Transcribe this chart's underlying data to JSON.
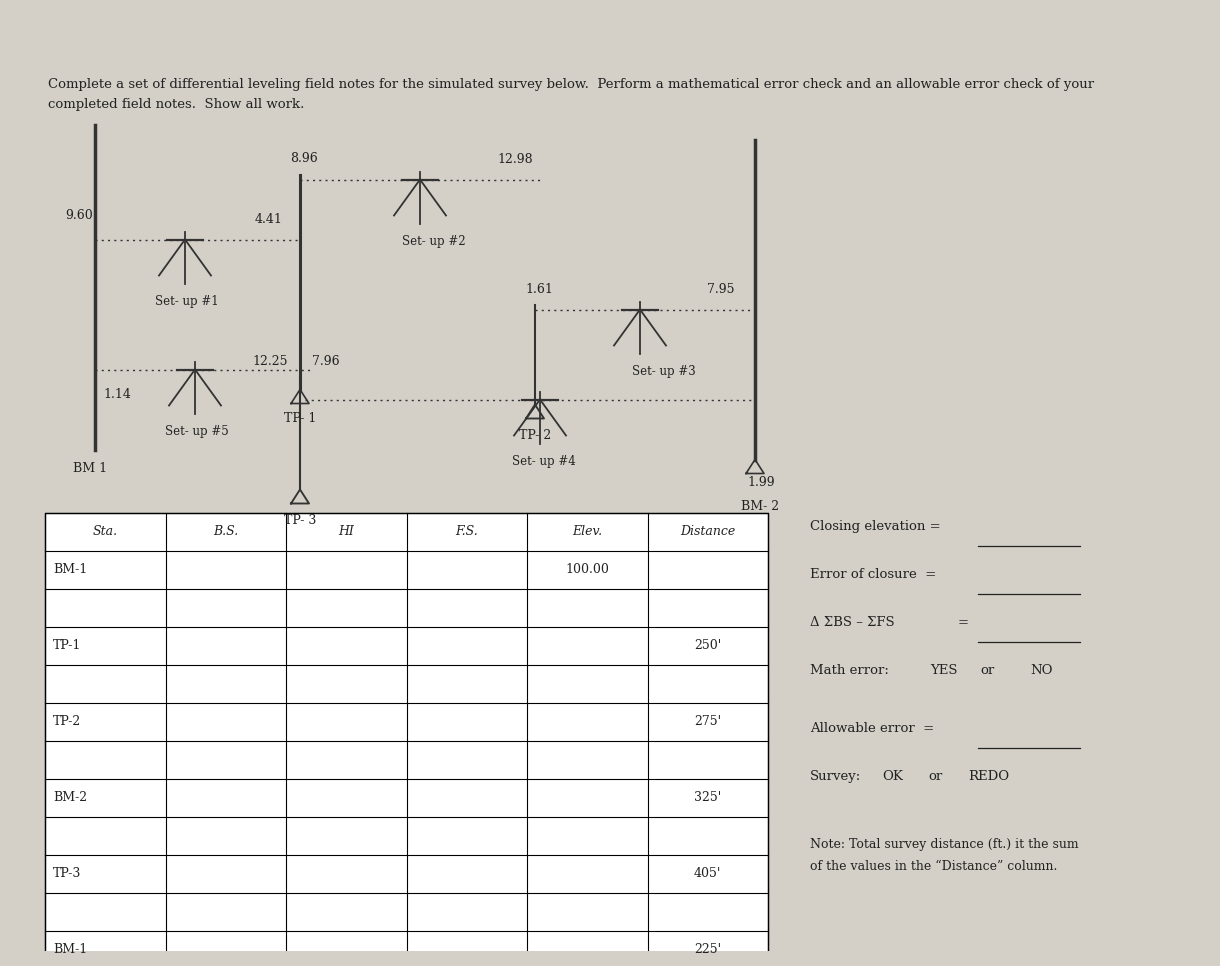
{
  "title_line1": "Complete a set of differential leveling field notes for the simulated survey below.  Perform a mathematical error check and an allowable error check of your",
  "title_line2": "completed field notes.  Show all work.",
  "bg_color": "#d4d0c8",
  "table": {
    "columns": [
      "Sta.",
      "B.S.",
      "HI",
      "F.S.",
      "Elev.",
      "Distance"
    ],
    "rows": [
      [
        "BM-1",
        "",
        "",
        "",
        "100.00",
        ""
      ],
      [
        "",
        "",
        "",
        "",
        "",
        ""
      ],
      [
        "TP-1",
        "",
        "",
        "",
        "",
        "250'"
      ],
      [
        "",
        "",
        "",
        "",
        "",
        ""
      ],
      [
        "TP-2",
        "",
        "",
        "",
        "",
        "275'"
      ],
      [
        "",
        "",
        "",
        "",
        "",
        ""
      ],
      [
        "BM-2",
        "",
        "",
        "",
        "",
        "325'"
      ],
      [
        "",
        "",
        "",
        "",
        "",
        ""
      ],
      [
        "TP-3",
        "",
        "",
        "",
        "",
        "405'"
      ],
      [
        "",
        "",
        "",
        "",
        "",
        ""
      ],
      [
        "BM-1",
        "",
        "",
        "",
        "",
        "225'"
      ]
    ]
  },
  "right_text": {
    "closing_elev": "Closing elevation =",
    "error_closure": "Error of closure  =",
    "delta_ebs": "Δ ΣBS – ΣFS",
    "math_error": "Math error:",
    "math_yes": "YES",
    "math_or1": "or",
    "math_no": "NO",
    "allowable": "Allowable error  =",
    "survey": "Survey:",
    "survey_ok": "OK",
    "survey_or": "or",
    "survey_redo": "REDO",
    "note_line1": "Note: Total survey distance (ft.) it the sum",
    "note_line2": "of the values in the “Distance” column."
  }
}
